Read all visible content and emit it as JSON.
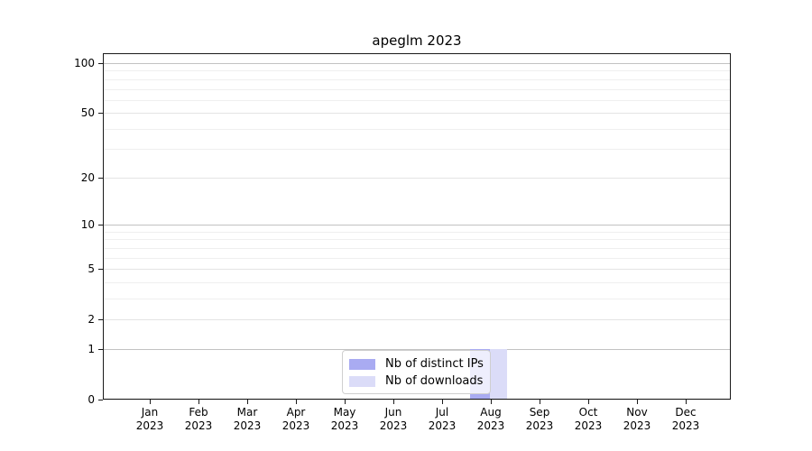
{
  "chart_data": {
    "type": "bar",
    "title": "apeglm 2023",
    "categories": [
      "Jan 2023",
      "Feb 2023",
      "Mar 2023",
      "Apr 2023",
      "May 2023",
      "Jun 2023",
      "Jul 2023",
      "Aug 2023",
      "Sep 2023",
      "Oct 2023",
      "Nov 2023",
      "Dec 2023"
    ],
    "series": [
      {
        "name": "Nb of distinct IPs",
        "color": "#a9abf2",
        "values": [
          0,
          0,
          0,
          0,
          0,
          0,
          0,
          1,
          0,
          0,
          0,
          0
        ]
      },
      {
        "name": "Nb of downloads",
        "color": "#dbdcf8",
        "values": [
          0,
          0,
          0,
          0,
          0,
          0,
          0,
          1,
          0,
          0,
          0,
          0
        ]
      }
    ],
    "yscale": "log1p",
    "ylim": [
      0,
      114.8
    ],
    "yticks": [
      0,
      1,
      2,
      5,
      10,
      20,
      50,
      100
    ],
    "yticks_emphasized": [
      1,
      10,
      100
    ],
    "yticks_minor": [
      3,
      4,
      6,
      7,
      8,
      9,
      30,
      40,
      60,
      70,
      80,
      90
    ],
    "xlabel": "",
    "ylabel": "",
    "grid": true,
    "legend_position": "lower center"
  },
  "colors": {
    "grid_major_emphasized": "#c2c2c2",
    "grid_major": "#e4e4e4",
    "grid_minor": "#efefef",
    "axis_frame": "#1a1a1a",
    "background": "#ffffff",
    "text": "#000000"
  }
}
